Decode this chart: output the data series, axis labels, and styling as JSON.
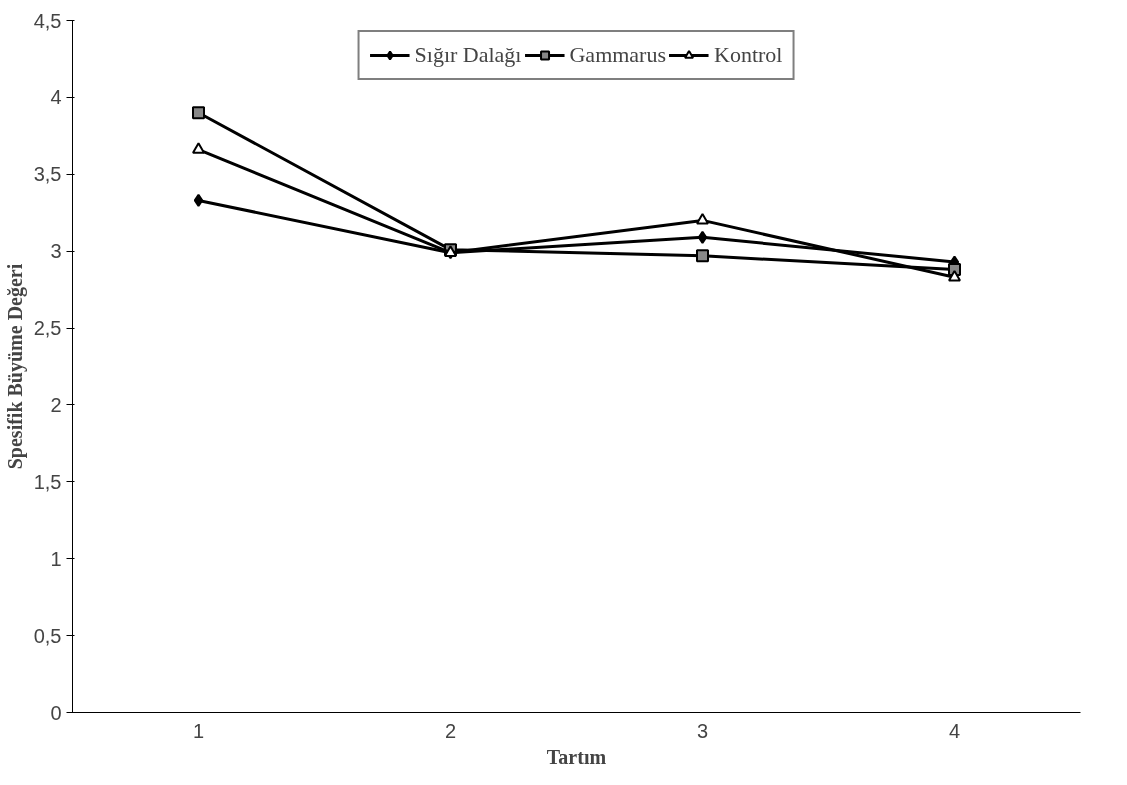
{
  "chart_data": {
    "type": "line",
    "xlabel": "Tartım",
    "ylabel": "Spesifik Büyüme Değeri",
    "categories": [
      "1",
      "2",
      "3",
      "4"
    ],
    "ylim": [
      0,
      4.5
    ],
    "yticks": [
      0,
      {
        "value": 0.5,
        "label": "0,5"
      },
      1,
      {
        "value": 1.5,
        "label": "1,5"
      },
      2,
      {
        "value": 2.5,
        "label": "2,5"
      },
      3,
      {
        "value": 3.5,
        "label": "3,5"
      },
      4,
      {
        "value": 4.5,
        "label": "4,5"
      }
    ],
    "grid": false,
    "legend": "top",
    "series": [
      {
        "name": "Sığır Dalağı",
        "color": "#000000",
        "marker": "diamond",
        "values": [
          3.33,
          2.99,
          3.09,
          2.93
        ]
      },
      {
        "name": "Gammarus",
        "color": "#000000",
        "marker": "square",
        "values": [
          3.9,
          3.01,
          2.97,
          2.88
        ]
      },
      {
        "name": "Kontrol",
        "color": "#000000",
        "marker": "triangle",
        "values": [
          3.66,
          2.99,
          3.2,
          2.83
        ]
      }
    ]
  }
}
